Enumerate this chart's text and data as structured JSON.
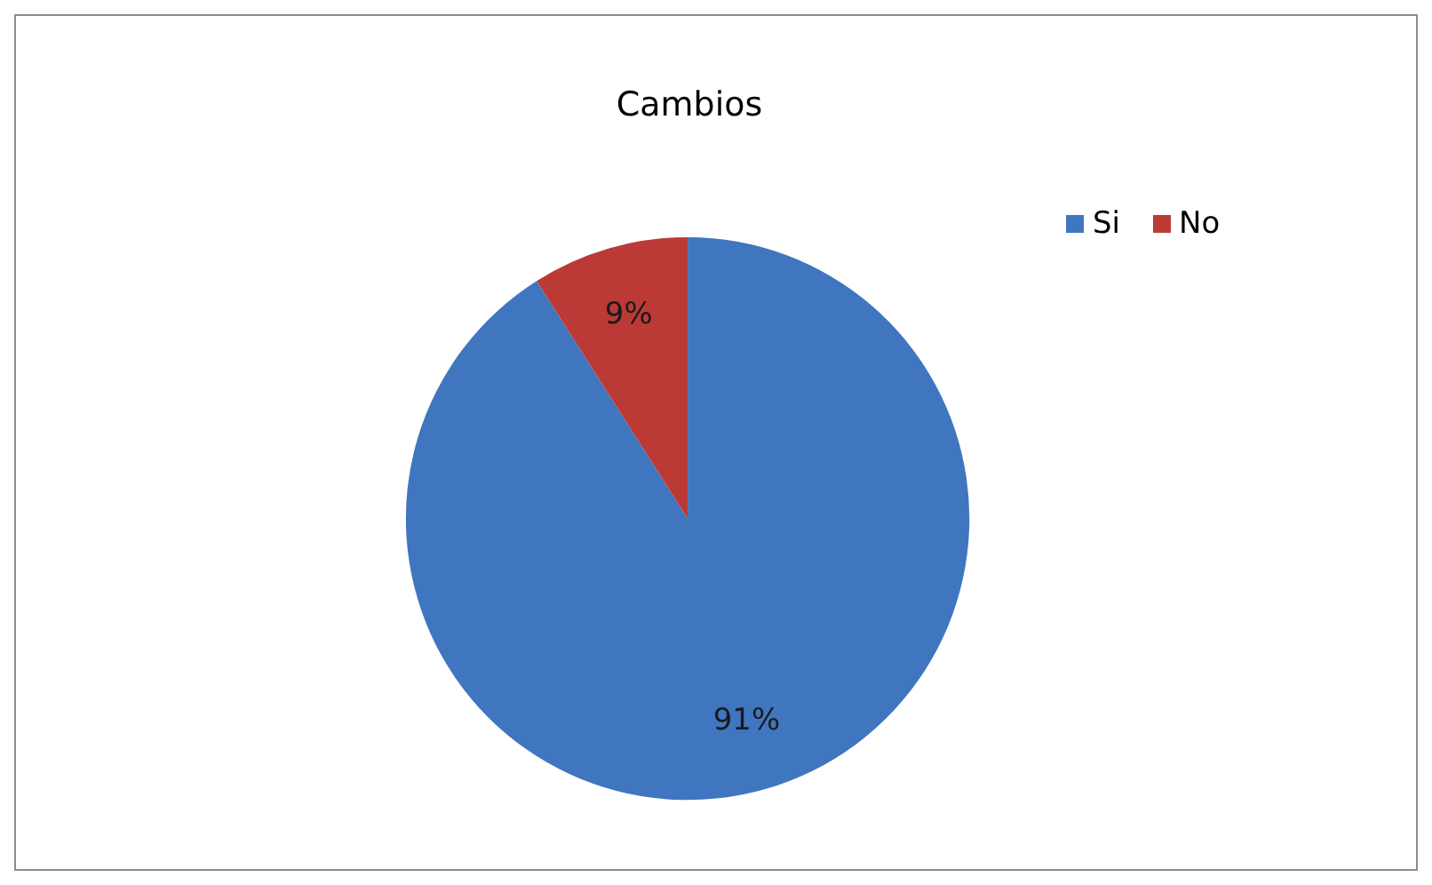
{
  "chart_data": {
    "type": "pie",
    "title": "Cambios",
    "categories": [
      "Si",
      "No"
    ],
    "values": [
      91,
      9
    ],
    "colors": [
      "#3f76bf",
      "#bb3a36"
    ],
    "value_labels": [
      "91%",
      "9%"
    ],
    "legend": "top right"
  }
}
